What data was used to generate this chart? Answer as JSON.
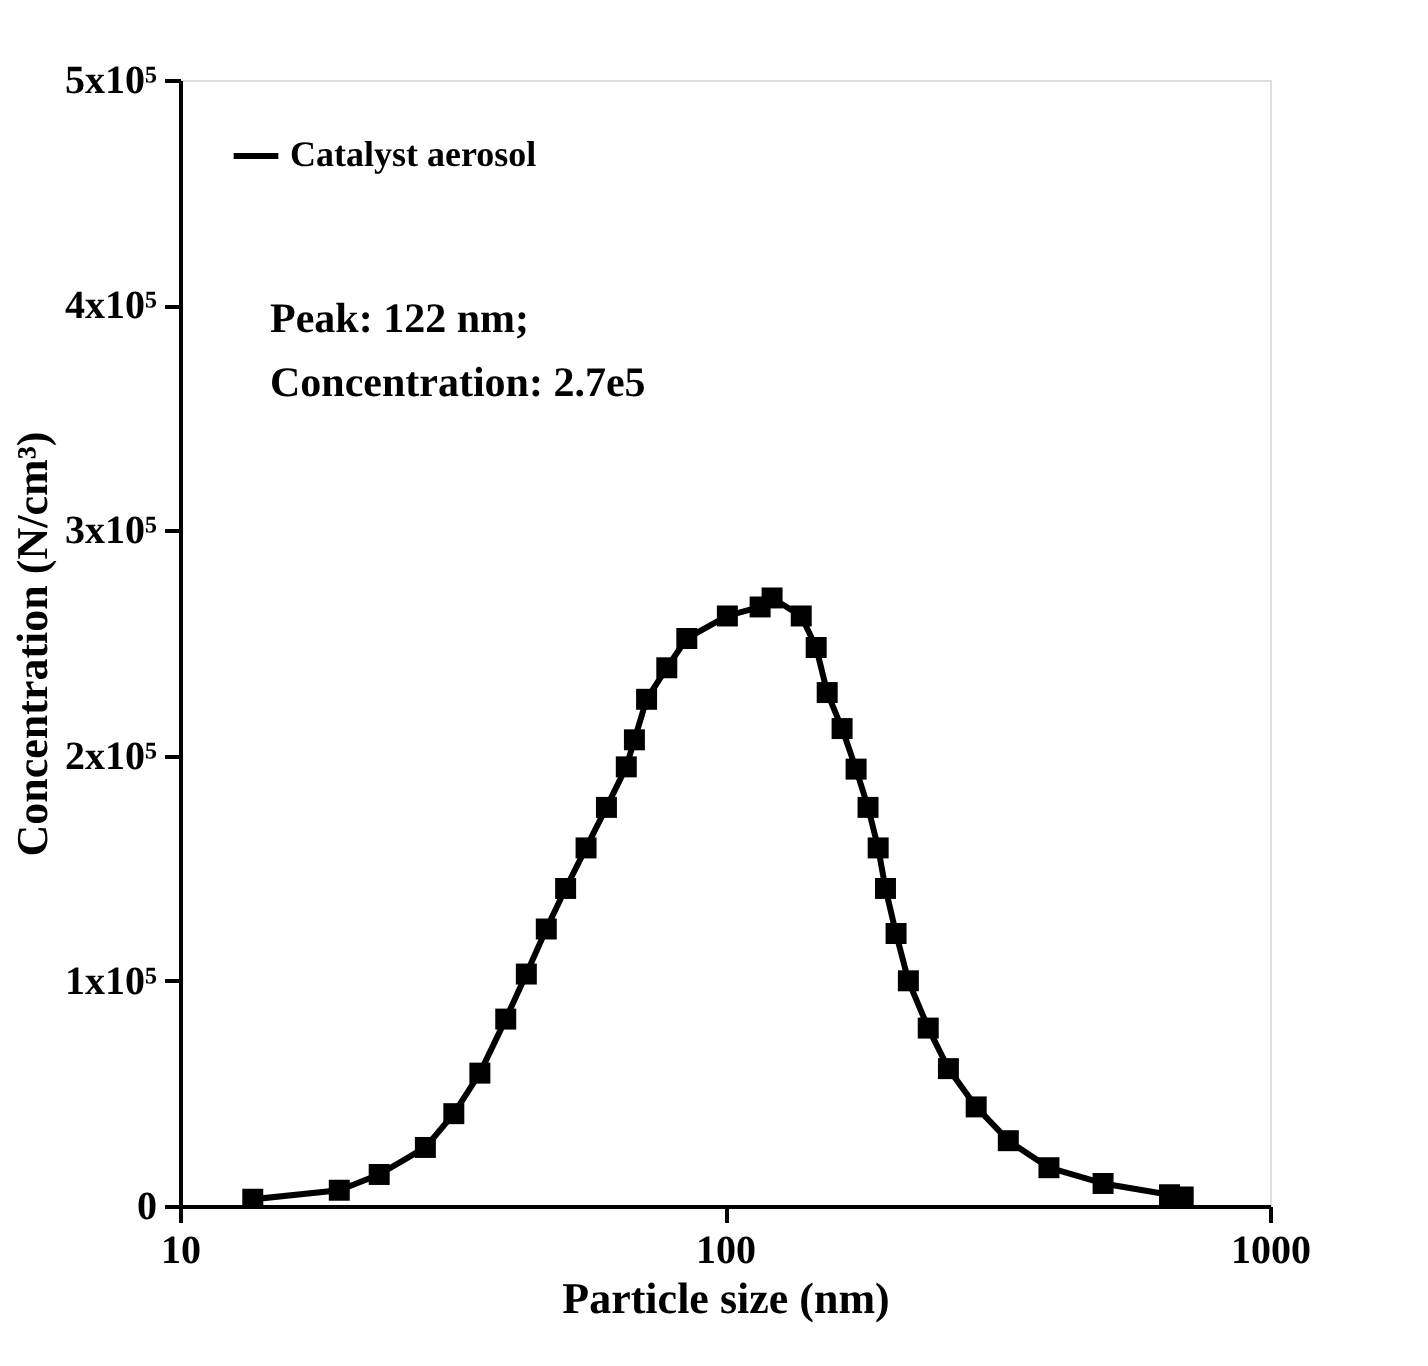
{
  "chart_data": {
    "type": "line",
    "xlabel": "Particle size (nm)",
    "ylabel": "Concentration (N/cm³)",
    "x": [
      13.6,
      19.6,
      23.2,
      28.2,
      31.8,
      35.5,
      39.6,
      43.2,
      47.0,
      51.0,
      55.6,
      60.6,
      65.9,
      68.2,
      71.8,
      78.2,
      85.1,
      101,
      116,
      122,
      138,
      147,
      154,
      164,
      174,
      183,
      191,
      197,
      206,
      217,
      236,
      257,
      289,
      331,
      393,
      494,
      654,
      693
    ],
    "series": [
      {
        "name": "Catalyst aerosol",
        "color": "#000000",
        "values": [
          3000,
          7000,
          14000,
          26000,
          41000,
          59000,
          83000,
          103000,
          123000,
          141000,
          159000,
          177000,
          195000,
          207000,
          225000,
          239000,
          252000,
          262000,
          266000,
          270000,
          262000,
          248000,
          228000,
          212000,
          194000,
          177000,
          159000,
          141000,
          121000,
          100000,
          79000,
          61000,
          44000,
          29000,
          17000,
          10000,
          5000,
          4000
        ]
      }
    ],
    "log": "x",
    "xlim": [
      10,
      1000
    ],
    "xticks": [
      10,
      100,
      1000
    ],
    "ylim": [
      0,
      500000
    ],
    "yticks": [
      0,
      {
        "value": 100000,
        "label": "1x10⁵"
      },
      {
        "value": 200000,
        "label": "2x10⁵"
      },
      {
        "value": 300000,
        "label": "3x10⁵"
      },
      {
        "value": 400000,
        "label": "4x10⁵"
      },
      {
        "value": 500000,
        "label": "5x10⁵"
      }
    ],
    "marker": "square",
    "line_style": "solid",
    "grid": false,
    "legend": "top left",
    "annotations": [
      "Peak: 122 nm;",
      "Concentration: 2.7e5"
    ]
  }
}
